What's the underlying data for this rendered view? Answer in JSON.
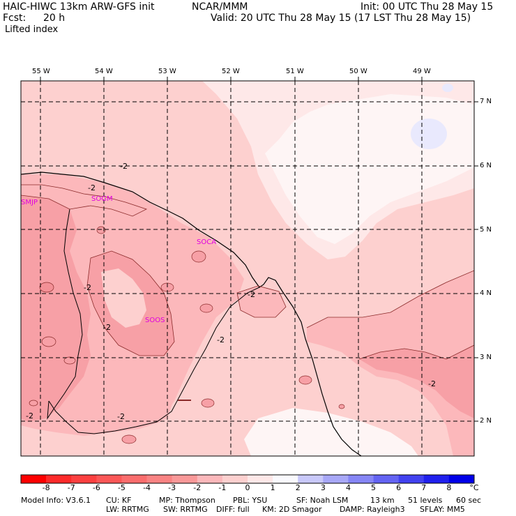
{
  "header": {
    "model": "HAIC-HIWC 13km ARW-GFS init",
    "org": "NCAR/MMM",
    "init": "Init: 00 UTC Thu 28 May 15",
    "fcst_label": "Fcst:",
    "fcst_value": "20 h",
    "valid": "Valid: 20 UTC Thu 28 May 15 (17 LST Thu 28 May 15)",
    "field": "Lifted index"
  },
  "map": {
    "lon_labels": [
      "55 W",
      "54 W",
      "53 W",
      "52 W",
      "51 W",
      "50 W",
      "49 W"
    ],
    "lat_labels": [
      "7 N",
      "6 N",
      "5 N",
      "4 N",
      "3 N",
      "2 N"
    ],
    "stations": [
      "SMJP",
      "SOGM",
      "SOCA",
      "SOOS"
    ],
    "contour_label": "-2",
    "colors": {
      "background": "#fdd0cf",
      "light": "#fee8e8",
      "white": "#fef5f5",
      "medium": "#fcb8bb",
      "dark": "#f7a0a6",
      "blue": "#e9e9fd",
      "station": "#e000e0"
    }
  },
  "colorbar": {
    "labels": [
      "-8",
      "-7",
      "-6",
      "-5",
      "-4",
      "-3",
      "-2",
      "-1",
      "0",
      "1",
      "2",
      "3",
      "4",
      "5",
      "6",
      "7",
      "8"
    ],
    "unit": "°C",
    "colors": [
      "#ff0000",
      "#fe2a2a",
      "#fd4040",
      "#fc5757",
      "#fb6d6d",
      "#fa8383",
      "#fa9999",
      "#fcb8bb",
      "#fdd0cf",
      "#fee8e8",
      "#fafafe",
      "#c9c9fb",
      "#a8a8f8",
      "#8686f6",
      "#6464f3",
      "#4242f0",
      "#2020ee",
      "#0000e8"
    ]
  },
  "footer": {
    "line1": [
      "Model Info: V3.6.1",
      "CU: KF",
      "MP: Thompson",
      "PBL: YSU",
      "SF: Noah LSM",
      "13 km",
      "51 levels",
      "60 sec"
    ],
    "line2": [
      "LW: RRTMG",
      "SW: RRTMG",
      "DIFF: full",
      "KM: 2D Smagor",
      "DAMP: Rayleigh3",
      "SFLAY: MM5"
    ]
  }
}
